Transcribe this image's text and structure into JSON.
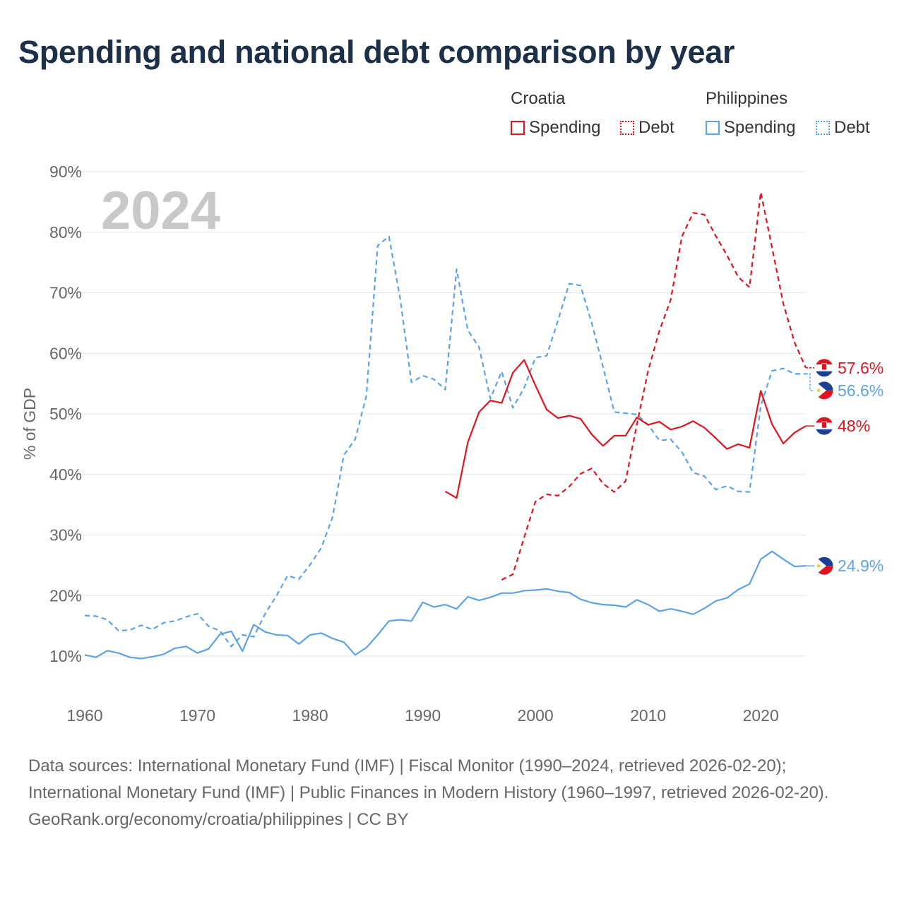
{
  "title": "Spending and national debt comparison by year",
  "legend": {
    "groups": [
      {
        "country": "Croatia",
        "color": "#e0141e",
        "items": [
          {
            "label": "Spending",
            "style": "solid"
          },
          {
            "label": "Debt",
            "style": "dashed"
          }
        ]
      },
      {
        "country": "Philippines",
        "color": "#5ba3e6",
        "items": [
          {
            "label": "Spending",
            "style": "solid"
          },
          {
            "label": "Debt",
            "style": "dashed"
          }
        ]
      }
    ]
  },
  "chart_data": {
    "type": "line",
    "year_label": "2024",
    "ylabel": "% of GDP",
    "xlim": [
      1960,
      2024
    ],
    "ylim": [
      10,
      90
    ],
    "x_ticks": [
      1960,
      1970,
      1980,
      1990,
      2000,
      2010,
      2020
    ],
    "y_ticks": [
      10,
      20,
      30,
      40,
      50,
      60,
      70,
      80,
      90
    ],
    "y_tick_labels": [
      "10%",
      "20%",
      "30%",
      "40%",
      "50%",
      "60%",
      "70%",
      "80%",
      "90%"
    ],
    "series": [
      {
        "name": "Croatia Debt",
        "country": "Croatia",
        "kind": "debt",
        "color": "#e0141e",
        "dash": true,
        "end_label": "57.6%",
        "end_value": 57.6,
        "points": [
          [
            1997,
            22.6
          ],
          [
            1998,
            23.5
          ],
          [
            1999,
            29.6
          ],
          [
            2000,
            35.5
          ],
          [
            2001,
            36.7
          ],
          [
            2002,
            36.5
          ],
          [
            2003,
            38
          ],
          [
            2004,
            40.1
          ],
          [
            2005,
            41
          ],
          [
            2006,
            38.5
          ],
          [
            2007,
            37.1
          ],
          [
            2008,
            38.9
          ],
          [
            2009,
            48.2
          ],
          [
            2010,
            57.1
          ],
          [
            2011,
            63.7
          ],
          [
            2012,
            68.8
          ],
          [
            2013,
            79.3
          ],
          [
            2014,
            83.2
          ],
          [
            2015,
            82.9
          ],
          [
            2016,
            79.4
          ],
          [
            2017,
            76.2
          ],
          [
            2018,
            72.6
          ],
          [
            2019,
            70.9
          ],
          [
            2020,
            86.6
          ],
          [
            2021,
            77.5
          ],
          [
            2022,
            68.2
          ],
          [
            2023,
            61.8
          ],
          [
            2024,
            57.6
          ]
        ]
      },
      {
        "name": "Philippines Debt",
        "country": "Philippines",
        "kind": "debt",
        "color": "#5ba3e6",
        "dash": true,
        "end_label": "56.6%",
        "end_value": 56.6,
        "points": [
          [
            1960,
            16.7
          ],
          [
            1961,
            16.6
          ],
          [
            1962,
            16
          ],
          [
            1963,
            14.2
          ],
          [
            1964,
            14.3
          ],
          [
            1965,
            15.1
          ],
          [
            1966,
            14.4
          ],
          [
            1967,
            15.5
          ],
          [
            1968,
            15.8
          ],
          [
            1969,
            16.5
          ],
          [
            1970,
            17
          ],
          [
            1971,
            14.9
          ],
          [
            1972,
            14.2
          ],
          [
            1973,
            11.6
          ],
          [
            1974,
            13.5
          ],
          [
            1975,
            13.2
          ],
          [
            1976,
            17
          ],
          [
            1977,
            19.9
          ],
          [
            1978,
            23.3
          ],
          [
            1979,
            22.7
          ],
          [
            1980,
            25.1
          ],
          [
            1981,
            27.9
          ],
          [
            1982,
            33
          ],
          [
            1983,
            43.2
          ],
          [
            1984,
            45.8
          ],
          [
            1985,
            53
          ],
          [
            1986,
            77.8
          ],
          [
            1987,
            79.3
          ],
          [
            1988,
            69
          ],
          [
            1989,
            55.2
          ],
          [
            1990,
            56.3
          ],
          [
            1991,
            55.7
          ],
          [
            1992,
            54
          ],
          [
            1993,
            73.9
          ],
          [
            1994,
            63.8
          ],
          [
            1995,
            61
          ],
          [
            1996,
            52.5
          ],
          [
            1997,
            57
          ],
          [
            1998,
            51
          ],
          [
            1999,
            54.3
          ],
          [
            2000,
            59.3
          ],
          [
            2001,
            59.6
          ],
          [
            2002,
            65.4
          ],
          [
            2003,
            71.5
          ],
          [
            2004,
            71.2
          ],
          [
            2005,
            65
          ],
          [
            2006,
            57.8
          ],
          [
            2007,
            50.3
          ],
          [
            2008,
            50.1
          ],
          [
            2009,
            49.9
          ],
          [
            2010,
            48.2
          ],
          [
            2011,
            45.6
          ],
          [
            2012,
            45.8
          ],
          [
            2013,
            43.7
          ],
          [
            2014,
            40.3
          ],
          [
            2015,
            39.7
          ],
          [
            2016,
            37.5
          ],
          [
            2017,
            38.1
          ],
          [
            2018,
            37.2
          ],
          [
            2019,
            37.1
          ],
          [
            2020,
            51.3
          ],
          [
            2021,
            57.1
          ],
          [
            2022,
            57.5
          ],
          [
            2023,
            56.6
          ],
          [
            2024,
            56.6
          ]
        ]
      },
      {
        "name": "Croatia Spending",
        "country": "Croatia",
        "kind": "spending",
        "color": "#e0141e",
        "dash": false,
        "end_label": "48%",
        "end_value": 48,
        "points": [
          [
            1992,
            37.2
          ],
          [
            1993,
            36.1
          ],
          [
            1994,
            45.3
          ],
          [
            1995,
            50.3
          ],
          [
            1996,
            52.2
          ],
          [
            1997,
            51.8
          ],
          [
            1998,
            56.8
          ],
          [
            1999,
            58.9
          ],
          [
            2000,
            54.7
          ],
          [
            2001,
            50.7
          ],
          [
            2002,
            49.3
          ],
          [
            2003,
            49.7
          ],
          [
            2004,
            49.2
          ],
          [
            2005,
            46.6
          ],
          [
            2006,
            44.7
          ],
          [
            2007,
            46.4
          ],
          [
            2008,
            46.4
          ],
          [
            2009,
            49.4
          ],
          [
            2010,
            48.2
          ],
          [
            2011,
            48.7
          ],
          [
            2012,
            47.4
          ],
          [
            2013,
            47.9
          ],
          [
            2014,
            48.8
          ],
          [
            2015,
            47.7
          ],
          [
            2016,
            46
          ],
          [
            2017,
            44.2
          ],
          [
            2018,
            45
          ],
          [
            2019,
            44.4
          ],
          [
            2020,
            53.8
          ],
          [
            2021,
            48.3
          ],
          [
            2022,
            45.1
          ],
          [
            2023,
            46.9
          ],
          [
            2024,
            48
          ]
        ]
      },
      {
        "name": "Philippines Spending",
        "country": "Philippines",
        "kind": "spending",
        "color": "#5ba3e6",
        "dash": false,
        "end_label": "24.9%",
        "end_value": 24.9,
        "points": [
          [
            1960,
            10.2
          ],
          [
            1961,
            9.8
          ],
          [
            1962,
            10.9
          ],
          [
            1963,
            10.5
          ],
          [
            1964,
            9.8
          ],
          [
            1965,
            9.6
          ],
          [
            1966,
            9.9
          ],
          [
            1967,
            10.3
          ],
          [
            1968,
            11.3
          ],
          [
            1969,
            11.6
          ],
          [
            1970,
            10.5
          ],
          [
            1971,
            11.2
          ],
          [
            1972,
            13.6
          ],
          [
            1973,
            14.1
          ],
          [
            1974,
            10.8
          ],
          [
            1975,
            15.2
          ],
          [
            1976,
            14
          ],
          [
            1977,
            13.5
          ],
          [
            1978,
            13.4
          ],
          [
            1979,
            12
          ],
          [
            1980,
            13.5
          ],
          [
            1981,
            13.8
          ],
          [
            1982,
            12.9
          ],
          [
            1983,
            12.3
          ],
          [
            1984,
            10.2
          ],
          [
            1985,
            11.4
          ],
          [
            1986,
            13.5
          ],
          [
            1987,
            15.8
          ],
          [
            1988,
            16
          ],
          [
            1989,
            15.8
          ],
          [
            1990,
            18.9
          ],
          [
            1991,
            18.1
          ],
          [
            1992,
            18.5
          ],
          [
            1993,
            17.8
          ],
          [
            1994,
            19.8
          ],
          [
            1995,
            19.2
          ],
          [
            1996,
            19.7
          ],
          [
            1997,
            20.4
          ],
          [
            1998,
            20.4
          ],
          [
            1999,
            20.8
          ],
          [
            2000,
            20.9
          ],
          [
            2001,
            21.1
          ],
          [
            2002,
            20.7
          ],
          [
            2003,
            20.5
          ],
          [
            2004,
            19.4
          ],
          [
            2005,
            18.8
          ],
          [
            2006,
            18.5
          ],
          [
            2007,
            18.4
          ],
          [
            2008,
            18.1
          ],
          [
            2009,
            19.3
          ],
          [
            2010,
            18.5
          ],
          [
            2011,
            17.4
          ],
          [
            2012,
            17.8
          ],
          [
            2013,
            17.4
          ],
          [
            2014,
            16.9
          ],
          [
            2015,
            17.9
          ],
          [
            2016,
            19.1
          ],
          [
            2017,
            19.6
          ],
          [
            2018,
            21
          ],
          [
            2019,
            21.9
          ],
          [
            2020,
            26
          ],
          [
            2021,
            27.3
          ],
          [
            2022,
            26
          ],
          [
            2023,
            24.8
          ],
          [
            2024,
            24.9
          ]
        ]
      }
    ]
  },
  "footer": {
    "sources": "Data sources: International Monetary Fund (IMF) | Fiscal Monitor (1990–2024, retrieved 2026-02-20); International Monetary Fund (IMF) | Public Finances in Modern History (1960–1997, retrieved 2026-02-20).",
    "credit": "GeoRank.org/economy/croatia/philippines | CC BY"
  }
}
